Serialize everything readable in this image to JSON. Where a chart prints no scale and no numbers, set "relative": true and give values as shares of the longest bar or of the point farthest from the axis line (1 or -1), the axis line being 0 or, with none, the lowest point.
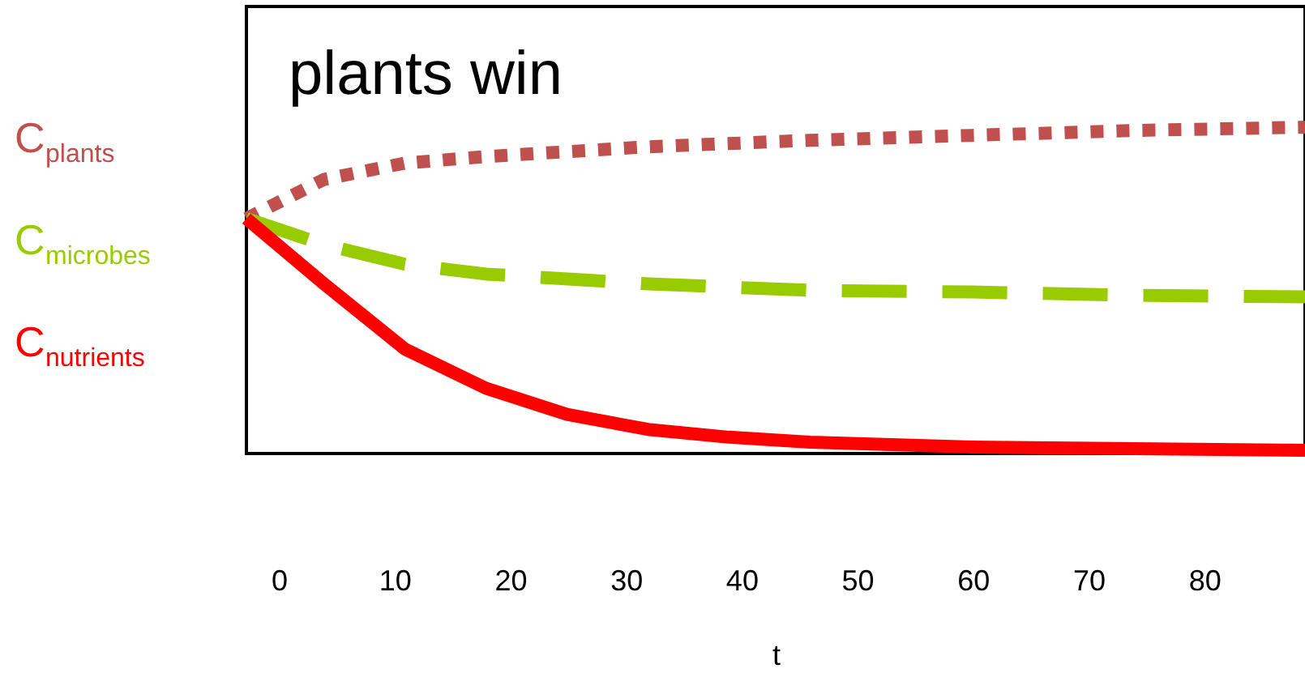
{
  "chart_data": {
    "type": "line",
    "title": "plants win",
    "xlabel": "t",
    "relative": true,
    "xlim": [
      -2.8,
      88.7
    ],
    "xticks": [
      0,
      10,
      20,
      30,
      40,
      50,
      60,
      70,
      80
    ],
    "grid": false,
    "legend": "left",
    "marker": "none",
    "series": [
      {
        "name": "C$_{plants}$",
        "color": "#c0504d",
        "line_style": "dotted",
        "x": [
          -2.8,
          3.9,
          10.9,
          17.9,
          31.9,
          45.9,
          59.9,
          73.9,
          88.7
        ],
        "values": [
          0.72,
          0.84,
          0.89,
          0.91,
          0.94,
          0.96,
          0.975,
          0.99,
          1.0
        ]
      },
      {
        "name": "C$_{microbes}$",
        "color": "#99cc00",
        "line_style": "dashed",
        "x": [
          -2.8,
          3.9,
          10.9,
          17.9,
          31.9,
          45.9,
          59.9,
          73.9,
          88.7
        ],
        "values": [
          0.72,
          0.64,
          0.58,
          0.55,
          0.52,
          0.5,
          0.495,
          0.485,
          0.48
        ]
      },
      {
        "name": "C$_{nutrients}$",
        "color": "#ff0000",
        "line_style": "solid",
        "x": [
          -2.8,
          3.9,
          10.9,
          17.9,
          24.9,
          31.9,
          38.9,
          45.9,
          59.9,
          73.9,
          88.7
        ],
        "values": [
          0.72,
          0.52,
          0.32,
          0.2,
          0.12,
          0.074,
          0.05,
          0.035,
          0.02,
          0.015,
          0.01
        ]
      }
    ]
  }
}
